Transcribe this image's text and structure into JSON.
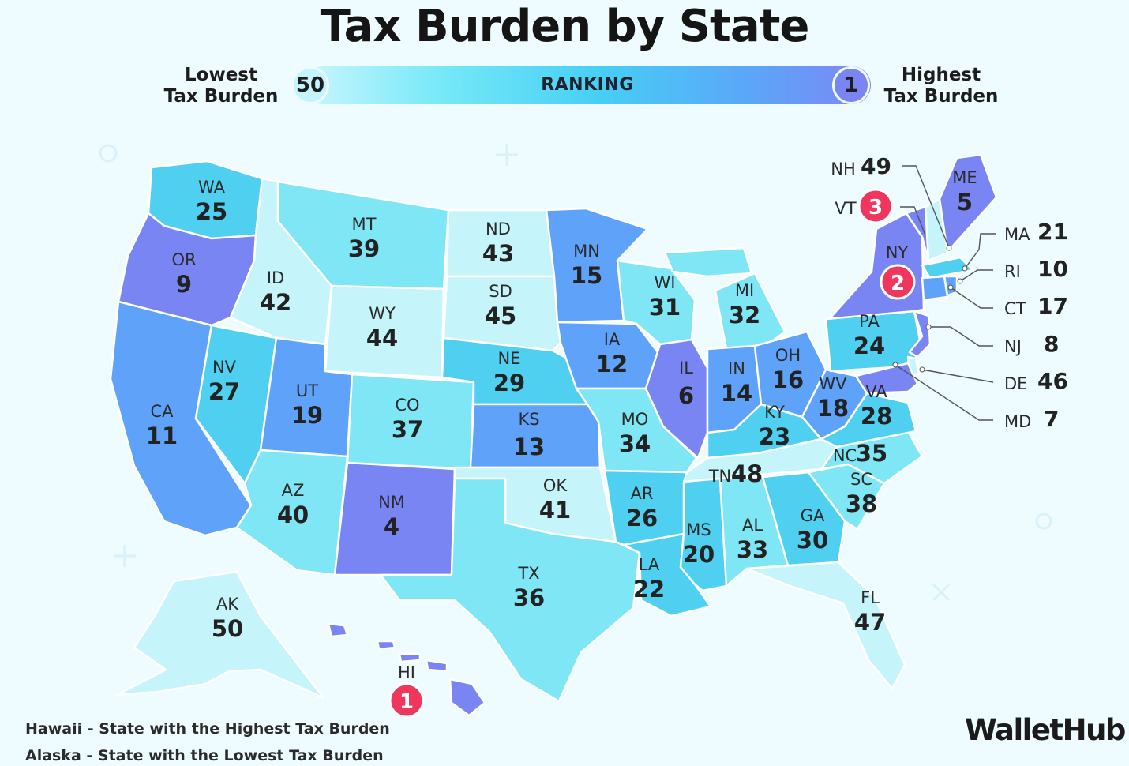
{
  "title": "Tax Burden by State",
  "legend": {
    "left_line1": "Lowest",
    "left_line2": "Tax Burden",
    "left_value": "50",
    "bar_label": "RANKING",
    "right_value": "1",
    "right_line1": "Highest",
    "right_line2": "Tax Burden"
  },
  "colors": {
    "tier_1": "#7a85f4",
    "tier_2": "#5fa2fa",
    "tier_3": "#4fd0f1",
    "tier_4": "#7fe6f5",
    "tier_5": "#c5f5fb",
    "badge": "#f0365c"
  },
  "states": [
    {
      "abbr": "WA",
      "rank": "25"
    },
    {
      "abbr": "OR",
      "rank": "9"
    },
    {
      "abbr": "CA",
      "rank": "11"
    },
    {
      "abbr": "NV",
      "rank": "27"
    },
    {
      "abbr": "ID",
      "rank": "42"
    },
    {
      "abbr": "MT",
      "rank": "39"
    },
    {
      "abbr": "WY",
      "rank": "44"
    },
    {
      "abbr": "UT",
      "rank": "19"
    },
    {
      "abbr": "AZ",
      "rank": "40"
    },
    {
      "abbr": "CO",
      "rank": "37"
    },
    {
      "abbr": "NM",
      "rank": "4"
    },
    {
      "abbr": "ND",
      "rank": "43"
    },
    {
      "abbr": "SD",
      "rank": "45"
    },
    {
      "abbr": "NE",
      "rank": "29"
    },
    {
      "abbr": "KS",
      "rank": "13"
    },
    {
      "abbr": "OK",
      "rank": "41"
    },
    {
      "abbr": "TX",
      "rank": "36"
    },
    {
      "abbr": "MN",
      "rank": "15"
    },
    {
      "abbr": "IA",
      "rank": "12"
    },
    {
      "abbr": "MO",
      "rank": "34"
    },
    {
      "abbr": "AR",
      "rank": "26"
    },
    {
      "abbr": "LA",
      "rank": "22"
    },
    {
      "abbr": "WI",
      "rank": "31"
    },
    {
      "abbr": "IL",
      "rank": "6"
    },
    {
      "abbr": "MI",
      "rank": "32"
    },
    {
      "abbr": "IN",
      "rank": "14"
    },
    {
      "abbr": "OH",
      "rank": "16"
    },
    {
      "abbr": "KY",
      "rank": "23"
    },
    {
      "abbr": "TN",
      "rank": "48"
    },
    {
      "abbr": "MS",
      "rank": "20"
    },
    {
      "abbr": "AL",
      "rank": "33"
    },
    {
      "abbr": "GA",
      "rank": "30"
    },
    {
      "abbr": "FL",
      "rank": "47"
    },
    {
      "abbr": "SC",
      "rank": "38"
    },
    {
      "abbr": "NC",
      "rank": "35"
    },
    {
      "abbr": "VA",
      "rank": "28"
    },
    {
      "abbr": "WV",
      "rank": "18"
    },
    {
      "abbr": "PA",
      "rank": "24"
    },
    {
      "abbr": "NY",
      "rank": "2"
    },
    {
      "abbr": "ME",
      "rank": "5"
    },
    {
      "abbr": "AK",
      "rank": "50"
    },
    {
      "abbr": "HI",
      "rank": "1"
    },
    {
      "abbr": "NH",
      "rank": "49"
    },
    {
      "abbr": "VT",
      "rank": "3"
    },
    {
      "abbr": "MA",
      "rank": "21"
    },
    {
      "abbr": "RI",
      "rank": "10"
    },
    {
      "abbr": "CT",
      "rank": "17"
    },
    {
      "abbr": "NJ",
      "rank": "8"
    },
    {
      "abbr": "DE",
      "rank": "46"
    },
    {
      "abbr": "MD",
      "rank": "7"
    }
  ],
  "footnotes": {
    "line1": "Hawaii - State with the Highest Tax Burden",
    "line2": "Alaska - State with the Lowest Tax Burden"
  },
  "brand": "WalletHub"
}
